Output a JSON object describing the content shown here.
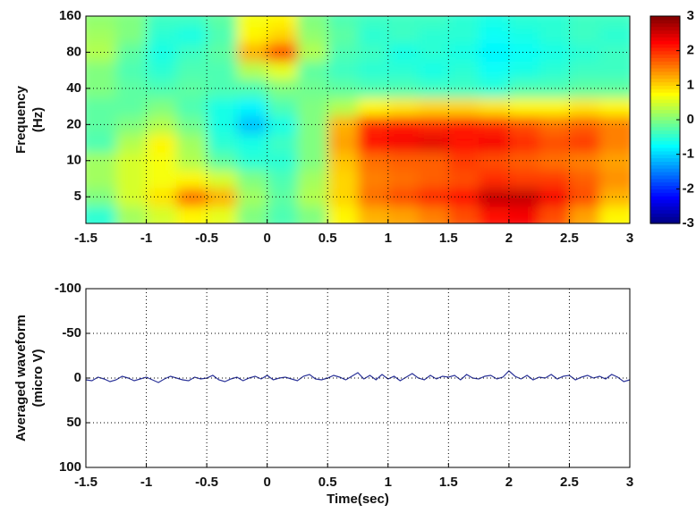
{
  "chart_data": [
    {
      "type": "heatmap",
      "ylabel": [
        "Frequency",
        "(Hz)"
      ],
      "colormap": "jet",
      "xlim": [
        -1.5,
        3
      ],
      "xticks": [
        -1.5,
        -1,
        -0.5,
        0,
        0.5,
        1,
        1.5,
        2,
        2.5,
        3
      ],
      "ylim": [
        3,
        160
      ],
      "yticks": [
        5,
        10,
        20,
        40,
        80,
        160
      ],
      "log_y": true,
      "grid": true,
      "clim": [
        -3,
        3
      ],
      "cticks": [
        -3,
        -2,
        -1,
        0,
        1,
        2,
        3
      ],
      "x": [
        -1.375,
        -1.125,
        -0.875,
        -0.625,
        -0.375,
        -0.125,
        0.125,
        0.375,
        0.625,
        0.875,
        1.125,
        1.375,
        1.625,
        1.875,
        2.125,
        2.375,
        2.625,
        2.875
      ],
      "y": [
        3.5,
        5,
        7,
        10,
        14,
        20,
        28,
        40,
        57,
        80,
        113,
        150
      ],
      "z": [
        [
          -0.5,
          0.2,
          0.5,
          0.8,
          0.6,
          0,
          -0.3,
          0,
          0.8,
          1.2,
          1.3,
          1.5,
          1.8,
          2.2,
          2.3,
          1.8,
          1.3,
          0.8
        ],
        [
          0,
          0.5,
          0.9,
          1.6,
          1.2,
          0.2,
          -0.2,
          0.3,
          1,
          1.6,
          1.8,
          2,
          2.2,
          2.6,
          2.6,
          2.3,
          1.8,
          1.2
        ],
        [
          0.2,
          0.5,
          0.7,
          0.8,
          0.5,
          0,
          -0.3,
          0.2,
          1,
          1.5,
          1.6,
          1.7,
          1.8,
          2,
          1.9,
          1.9,
          1.7,
          1.4
        ],
        [
          0.2,
          0.5,
          0.7,
          0.3,
          -0.2,
          -0.5,
          -0.5,
          0,
          1.1,
          1.6,
          1.7,
          1.7,
          1.9,
          1.8,
          1.7,
          1.6,
          1.5,
          1.3
        ],
        [
          -0.3,
          0.3,
          0.8,
          0.2,
          -0.5,
          -0.6,
          -0.4,
          0,
          1.3,
          2.2,
          2.3,
          2.4,
          2.2,
          2.3,
          2,
          1.8,
          1.9,
          1.5
        ],
        [
          -0.2,
          0,
          0.3,
          -0.1,
          -0.6,
          -1.1,
          -0.6,
          0,
          1.2,
          2,
          2.1,
          2,
          2.1,
          2,
          1.8,
          1.6,
          1.7,
          1.5
        ],
        [
          -0.2,
          -0.2,
          0,
          -0.3,
          -0.6,
          -0.8,
          -0.3,
          0,
          0.3,
          0.8,
          0.9,
          1,
          1,
          0.9,
          0.8,
          0.8,
          0.9,
          0.8
        ],
        [
          0,
          -0.2,
          -0.3,
          -0.2,
          -0.3,
          -0.3,
          0,
          -0.1,
          -0.2,
          -0.3,
          -0.3,
          -0.4,
          -0.4,
          -0.5,
          -0.3,
          -0.3,
          -0.2,
          -0.2
        ],
        [
          0,
          -0.3,
          -0.5,
          -0.3,
          -0.3,
          0.3,
          0.6,
          -0.2,
          -0.4,
          -0.5,
          -0.5,
          -0.6,
          -0.5,
          -0.7,
          -0.6,
          -0.5,
          -0.4,
          -0.4
        ],
        [
          0.3,
          -0.2,
          -0.6,
          -0.4,
          -0.2,
          1.2,
          1.8,
          0.3,
          -0.3,
          -0.4,
          -0.6,
          -0.5,
          -0.6,
          -0.8,
          -0.7,
          -0.6,
          -0.5,
          -0.4
        ],
        [
          0.2,
          0,
          -0.5,
          -0.6,
          -0.3,
          0.8,
          1,
          0.1,
          -0.2,
          -0.5,
          -0.4,
          -0.5,
          -0.5,
          -0.7,
          -0.6,
          -0.5,
          -0.4,
          -0.5
        ],
        [
          0.1,
          0,
          -0.4,
          -0.4,
          -0.2,
          0.7,
          0.8,
          0,
          -0.3,
          -0.4,
          -0.4,
          -0.4,
          -0.5,
          -0.6,
          -0.5,
          -0.5,
          -0.4,
          -0.4
        ]
      ]
    },
    {
      "type": "line",
      "ylabel": [
        "Averaged waveform",
        "(micro V)"
      ],
      "xlabel": "Time(sec)",
      "xlim": [
        -1.5,
        3
      ],
      "xticks": [
        -1.5,
        -1,
        -0.5,
        0,
        0.5,
        1,
        1.5,
        2,
        2.5,
        3
      ],
      "ylim": [
        -100,
        100
      ],
      "yticks": [
        -100,
        -50,
        0,
        50,
        100
      ],
      "invert_y": true,
      "grid": true,
      "color": "#2b3399",
      "x": [
        -1.5,
        -1.45,
        -1.4,
        -1.35,
        -1.3,
        -1.25,
        -1.2,
        -1.15,
        -1.1,
        -1.05,
        -1,
        -0.95,
        -0.9,
        -0.85,
        -0.8,
        -0.75,
        -0.7,
        -0.65,
        -0.6,
        -0.55,
        -0.5,
        -0.45,
        -0.4,
        -0.35,
        -0.3,
        -0.25,
        -0.2,
        -0.15,
        -0.1,
        -0.05,
        0,
        0.05,
        0.1,
        0.15,
        0.2,
        0.25,
        0.3,
        0.35,
        0.4,
        0.45,
        0.5,
        0.55,
        0.6,
        0.65,
        0.7,
        0.75,
        0.8,
        0.85,
        0.9,
        0.95,
        1,
        1.05,
        1.1,
        1.15,
        1.2,
        1.25,
        1.3,
        1.35,
        1.4,
        1.45,
        1.5,
        1.55,
        1.6,
        1.65,
        1.7,
        1.75,
        1.8,
        1.85,
        1.9,
        1.95,
        2,
        2.05,
        2.1,
        2.15,
        2.2,
        2.25,
        2.3,
        2.35,
        2.4,
        2.45,
        2.5,
        2.55,
        2.6,
        2.65,
        2.7,
        2.75,
        2.8,
        2.85,
        2.9,
        2.95,
        3
      ],
      "values": [
        2,
        3,
        -1,
        1,
        4,
        2,
        -2,
        0,
        3,
        1,
        -1,
        2,
        5,
        1,
        -2,
        0,
        2,
        3,
        -1,
        1,
        0,
        -3,
        2,
        4,
        1,
        -1,
        3,
        0,
        -2,
        1,
        -3,
        2,
        0,
        -1,
        1,
        3,
        -2,
        -4,
        1,
        2,
        0,
        -3,
        -1,
        2,
        -2,
        -6,
        1,
        -3,
        2,
        -4,
        1,
        -2,
        3,
        -1,
        -5,
        0,
        2,
        -3,
        1,
        -2,
        -1,
        -3,
        2,
        -4,
        0,
        1,
        -2,
        -3,
        1,
        -1,
        -8,
        -2,
        1,
        -3,
        2,
        -1,
        0,
        -4,
        1,
        -2,
        -3,
        2,
        -1,
        -3,
        0,
        -2,
        1,
        -4,
        -1,
        4,
        2
      ]
    }
  ]
}
